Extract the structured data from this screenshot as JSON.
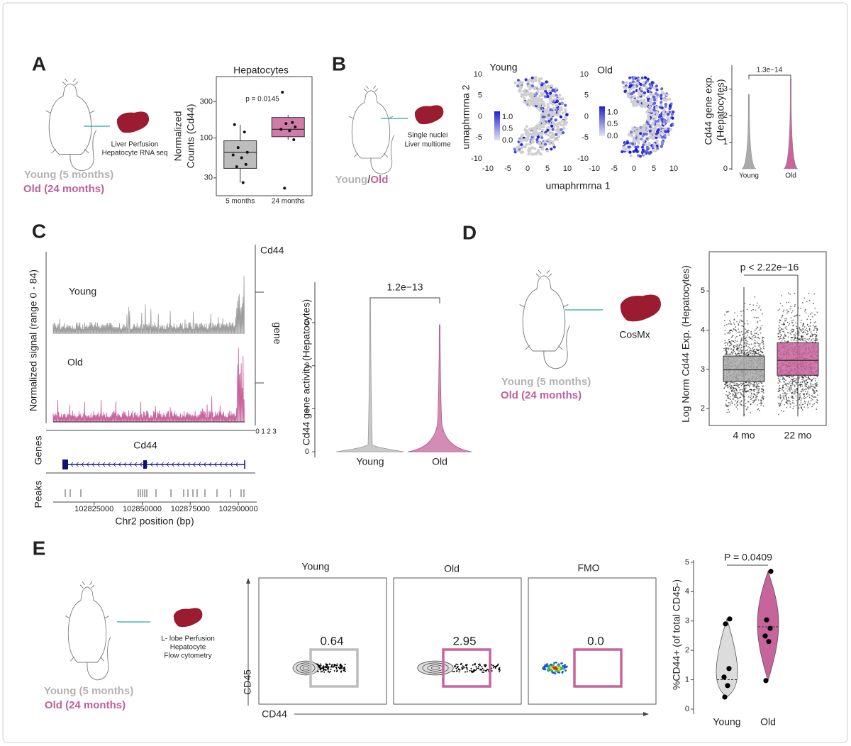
{
  "panels": {
    "A": {
      "label": "A",
      "young": "Young (5 months)",
      "old": "Old (24 months)",
      "steps": [
        "Liver Perfusion",
        "Hepatocyte RNA seq"
      ],
      "box": {
        "title": "Hepatocytes",
        "ylabel": [
          "Normalized",
          "Counts (Cd44)"
        ],
        "pvalue": "p = 0.0145",
        "categories": [
          "5 months",
          "24 months"
        ],
        "log": true,
        "ylim": [
          17.5,
          640
        ],
        "yticks": [
          30,
          100,
          300
        ],
        "series": [
          {
            "color": "#bdbdbd",
            "low": 26,
            "q1": 40,
            "median": 65,
            "q3": 92,
            "high": 150,
            "points": [
              150,
              120,
              75,
              65,
              60,
              55,
              45,
              42,
              26
            ]
          },
          {
            "color": "#d07ba8",
            "low": 95,
            "q1": 104,
            "median": 130,
            "q3": 186,
            "high": 200,
            "points": [
              400,
              160,
              155,
              140,
              130,
              125,
              95,
              22
            ]
          }
        ]
      }
    },
    "B": {
      "label": "B",
      "group": [
        "Young",
        "/",
        "Old"
      ],
      "steps": [
        "Single nuclei",
        "Liver multiome"
      ],
      "umap": {
        "titles": [
          "Young",
          "Old"
        ],
        "xlabel": "umaphrmrna 1",
        "ylabel": "umaphrmrna 2",
        "xlim": [
          -10,
          10
        ],
        "xticks": [
          -10,
          -5,
          0,
          5,
          10
        ],
        "ylim": [
          -10,
          10
        ],
        "yticks": [
          -10,
          -5,
          0,
          5,
          10
        ],
        "colorbar": {
          "range": [
            0,
            1.25
          ],
          "ticks": [
            {
              "value": 0,
              "label": "0.0"
            },
            {
              "value": 0.5,
              "label": "0.5"
            },
            {
              "value": 1,
              "label": "1.0"
            }
          ]
        }
      },
      "violin": {
        "ylabel": [
          "Cd44 gene exp.",
          "(Hepatocytes)"
        ],
        "pvalue": "1.3e−14",
        "categories": [
          "Young",
          "Old"
        ],
        "ylim": [
          0,
          3.9
        ],
        "yticks": [
          0,
          1,
          2,
          3
        ],
        "max": [
          2.8,
          3.4
        ]
      }
    },
    "C": {
      "label": "C",
      "track": {
        "ylabel": "Normalized signal (range 0 - 84)",
        "groups": [
          "Young",
          "Old"
        ],
        "gene_title": "Cd44",
        "gene_axis": "gene",
        "gene_ticks": [
          0,
          1,
          2,
          3
        ],
        "genes_label": "Genes",
        "gene_name": "Cd44",
        "peaks_label": "Peaks",
        "xlabel": "Chr2 position (bp)",
        "xlim": [
          102803700,
          102903300
        ],
        "xticks": [
          102825000,
          102850000,
          102875000,
          102900000
        ]
      },
      "violin": {
        "ylabel": "Cd44 gene activity (Hepatocytes)",
        "pvalue": "1.2e−13",
        "categories": [
          "Young",
          "Old"
        ],
        "ylim": [
          -0.13,
          3.94
        ],
        "yticks": [
          0,
          1,
          2,
          3
        ],
        "max": [
          3.5,
          2.95
        ]
      }
    },
    "D": {
      "label": "D",
      "young": "Young (5 months)",
      "old": "Old (24 months)",
      "step": "CosMx",
      "box": {
        "ylabel": "Log Norm Cd44 Exp. (Hepatocytes)",
        "pvalue": "p < 2.22e−16",
        "categories": [
          "4 mo",
          "22 mo"
        ],
        "ylim": [
          1.57,
          6.0
        ],
        "yticks": [
          2,
          3,
          4,
          5
        ],
        "series": [
          {
            "color": "#a9a9a9",
            "low": 1.8,
            "q1": 2.69,
            "median": 2.99,
            "q3": 3.34,
            "high": 5.1
          },
          {
            "color": "#c8649c",
            "low": 1.8,
            "q1": 2.85,
            "median": 3.23,
            "q3": 3.68,
            "high": 5.4
          }
        ]
      }
    },
    "E": {
      "label": "E",
      "young": "Young (5 months)",
      "old": "Old (24 months)",
      "steps": [
        "L- lobe Perfusion",
        "Hepatocyte",
        "Flow cytometry"
      ],
      "flow": {
        "titles": [
          "Young",
          "Old",
          "FMO"
        ],
        "gates": [
          "0.64",
          "2.95",
          "0.0"
        ],
        "ylabel": "CD45",
        "xlabel": "CD44"
      },
      "violin": {
        "ylabel": "%CD44+ (of total CD45-)",
        "pvalue": "P = 0.0409",
        "categories": [
          "Young",
          "Old"
        ],
        "ylim": [
          -0.17,
          5.07
        ],
        "yticks": [
          0,
          1,
          2,
          3,
          4,
          5
        ],
        "series": [
          {
            "color": "#dcdcdc",
            "median": 1.0,
            "points": [
              3.07,
              2.9,
              1.38,
              1.09,
              0.8,
              0.41
            ]
          },
          {
            "color": "#c8649c",
            "median": 2.8,
            "points": [
              4.69,
              3.04,
              2.75,
              2.49,
              2.3,
              0.97
            ]
          }
        ]
      }
    }
  }
}
